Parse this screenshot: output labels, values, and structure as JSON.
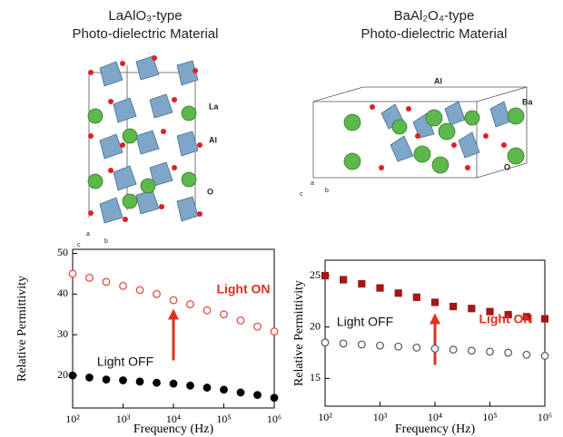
{
  "chart_data": [
    {
      "type": "scatter",
      "title": "LaAlO₃-type",
      "subtitle": "Photo-dielectric Material",
      "x_label": "Frequency (Hz)",
      "y_label": "Relative Permittivity",
      "x_scale": "log",
      "xlim": [
        100,
        1000000
      ],
      "xticks": [
        {
          "value": 100,
          "label": "10²"
        },
        {
          "value": 1000,
          "label": "10³"
        },
        {
          "value": 10000,
          "label": "10⁴"
        },
        {
          "value": 100000,
          "label": "10⁵"
        },
        {
          "value": 1000000,
          "label": "10⁶"
        }
      ],
      "ylim": [
        12,
        51
      ],
      "yticks": [
        20,
        30,
        40,
        50
      ],
      "x": [
        100,
        215,
        464,
        1000,
        2154,
        4642,
        10000,
        21544,
        46416,
        100000,
        215443,
        464159,
        1000000
      ],
      "series": [
        {
          "name": "Light ON",
          "color": "#e0413a",
          "marker": "circle",
          "filled": false,
          "values": [
            45,
            44,
            43,
            42,
            41,
            40,
            38.5,
            37.5,
            36,
            35,
            33.5,
            32,
            30.8
          ]
        },
        {
          "name": "Light OFF",
          "color": "#000000",
          "marker": "circle",
          "filled": true,
          "values": [
            20,
            19.5,
            19,
            18.8,
            18.5,
            18.2,
            18,
            17.5,
            17,
            16.5,
            15.8,
            15.2,
            14.5
          ]
        }
      ],
      "atom_labels": [
        "La",
        "Al",
        "O"
      ],
      "axis_labels": [
        "a",
        "b",
        "c"
      ]
    },
    {
      "type": "scatter",
      "title": "BaAl₂O₄-type",
      "subtitle": "Photo-dielectric Material",
      "x_label": "Frequency (Hz)",
      "y_label": "Relative Permittivity",
      "x_scale": "log",
      "xlim": [
        100,
        1000000
      ],
      "xticks": [
        {
          "value": 100,
          "label": "10²"
        },
        {
          "value": 1000,
          "label": "10³"
        },
        {
          "value": 10000,
          "label": "10⁴"
        },
        {
          "value": 100000,
          "label": "10⁵"
        },
        {
          "value": 1000000,
          "label": "10⁶"
        }
      ],
      "ylim": [
        12.3,
        26.5
      ],
      "yticks": [
        15,
        20,
        25
      ],
      "x": [
        100,
        215,
        464,
        1000,
        2154,
        4642,
        10000,
        21544,
        46416,
        100000,
        215443,
        464159,
        1000000
      ],
      "series": [
        {
          "name": "Light ON",
          "color": "#a01818",
          "marker": "square",
          "filled": true,
          "values": [
            25,
            24.6,
            24.2,
            23.8,
            23.3,
            22.9,
            22.4,
            22,
            21.8,
            21.5,
            21.2,
            21,
            20.8
          ]
        },
        {
          "name": "Light OFF",
          "color": "#555555",
          "marker": "circle",
          "filled": false,
          "values": [
            18.5,
            18.4,
            18.3,
            18.2,
            18.1,
            18,
            17.9,
            17.8,
            17.7,
            17.6,
            17.5,
            17.3,
            17.2
          ]
        }
      ],
      "atom_labels": [
        "Al",
        "Ba",
        "O"
      ],
      "axis_labels": [
        "a",
        "b",
        "c"
      ]
    }
  ]
}
